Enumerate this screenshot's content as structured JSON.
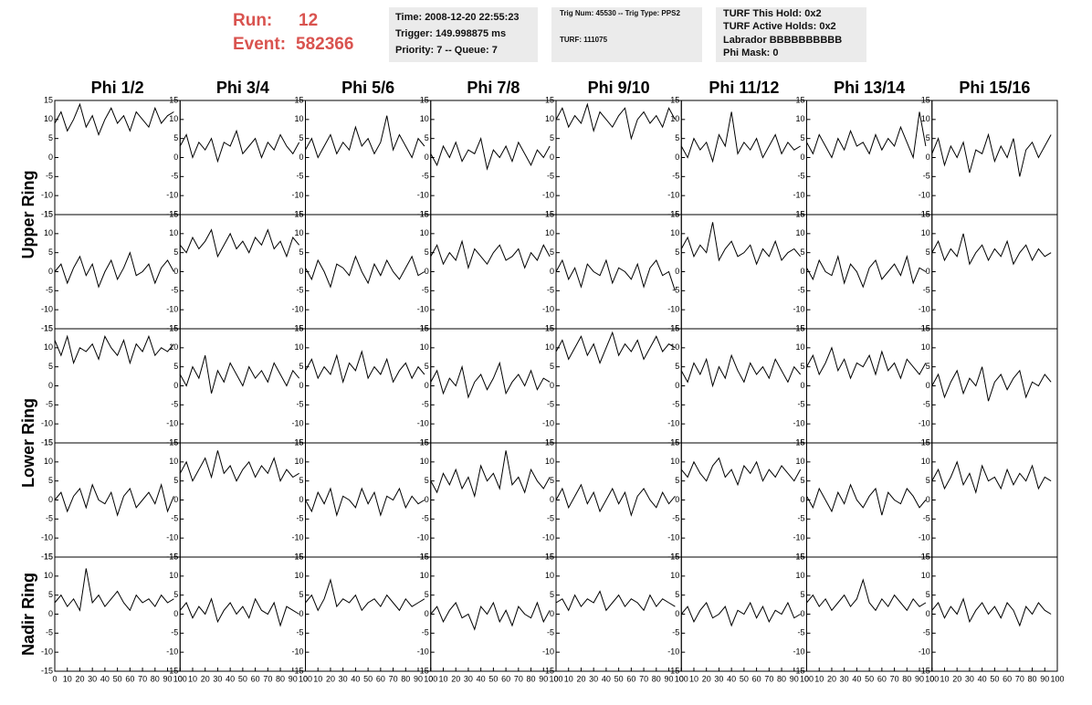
{
  "header": {
    "run_label": "Run:",
    "run": "12",
    "event_label": "Event:",
    "event": "582366",
    "time": "Time: 2008-12-20 22:55:23",
    "trigger": "Trigger: 149.998875 ms",
    "priority": "Priority: 7 -- Queue: 7",
    "trig_num": "Trig Num: 45530 -- Trig Type: PPS2",
    "turf": "TURF: 111075",
    "turf_hold": "TURF This Hold: 0x2",
    "turf_active": "TURF Active Holds: 0x2",
    "labrador": "Labrador BBBBBBBBBB",
    "phi_mask": "Phi Mask: 0"
  },
  "chart_data": {
    "type": "line",
    "columns": [
      "Phi 1/2",
      "Phi 3/4",
      "Phi 5/6",
      "Phi 7/8",
      "Phi 9/10",
      "Phi 11/12",
      "Phi 13/14",
      "Phi 15/16"
    ],
    "row_labels": [
      "Upper Ring",
      "Lower Ring",
      "Nadir Ring"
    ],
    "color": "#000000",
    "xlim": [
      0,
      100
    ],
    "xticks": [
      0,
      10,
      20,
      30,
      40,
      50,
      60,
      70,
      80,
      90,
      100
    ],
    "ylim": [
      -15,
      15
    ],
    "yticks": [
      -15,
      -10,
      -5,
      0,
      5,
      10,
      15
    ],
    "x": [
      0,
      5,
      10,
      15,
      20,
      25,
      30,
      35,
      40,
      45,
      50,
      55,
      60,
      65,
      70,
      75,
      80,
      85,
      90,
      95
    ],
    "panels": [
      [
        [
          9,
          12,
          7,
          10,
          14,
          8,
          11,
          6,
          10,
          13,
          9,
          11,
          7,
          12,
          10,
          8,
          13,
          9,
          11,
          12
        ],
        [
          3,
          6,
          0,
          4,
          2,
          5,
          -1,
          4,
          3,
          7,
          1,
          3,
          5,
          0,
          4,
          2,
          6,
          3,
          1,
          4
        ],
        [
          2,
          5,
          0,
          3,
          6,
          1,
          4,
          2,
          8,
          3,
          5,
          1,
          4,
          11,
          2,
          6,
          3,
          0,
          5,
          3
        ],
        [
          1,
          -2,
          3,
          0,
          4,
          -1,
          2,
          1,
          5,
          -3,
          2,
          0,
          3,
          -1,
          4,
          1,
          -2,
          2,
          0,
          3
        ],
        [
          10,
          13,
          8,
          11,
          9,
          14,
          7,
          12,
          10,
          8,
          11,
          13,
          5,
          10,
          12,
          9,
          11,
          8,
          13,
          10
        ],
        [
          3,
          0,
          5,
          2,
          4,
          -1,
          6,
          3,
          12,
          1,
          4,
          2,
          5,
          0,
          3,
          6,
          1,
          4,
          2,
          3
        ],
        [
          4,
          1,
          6,
          3,
          0,
          5,
          2,
          7,
          3,
          4,
          1,
          6,
          2,
          5,
          3,
          8,
          4,
          0,
          12,
          3
        ],
        [
          1,
          5,
          -2,
          3,
          0,
          4,
          -4,
          2,
          1,
          6,
          -1,
          3,
          0,
          5,
          -5,
          2,
          4,
          0,
          3,
          6
        ]
      ],
      [
        [
          0,
          2,
          -3,
          1,
          4,
          -1,
          2,
          -4,
          0,
          3,
          -2,
          1,
          5,
          -1,
          0,
          2,
          -3,
          1,
          3,
          0
        ],
        [
          7,
          5,
          9,
          6,
          8,
          11,
          4,
          7,
          10,
          6,
          8,
          5,
          9,
          7,
          11,
          6,
          8,
          4,
          9,
          7
        ],
        [
          1,
          -2,
          3,
          0,
          -4,
          2,
          1,
          -1,
          4,
          0,
          -3,
          2,
          -1,
          3,
          0,
          -2,
          1,
          4,
          -1,
          0
        ],
        [
          4,
          7,
          2,
          5,
          3,
          8,
          1,
          6,
          4,
          2,
          5,
          7,
          3,
          4,
          6,
          1,
          5,
          3,
          7,
          4
        ],
        [
          0,
          3,
          -2,
          1,
          -4,
          2,
          0,
          -1,
          3,
          -3,
          1,
          0,
          -2,
          2,
          -4,
          1,
          3,
          -1,
          0,
          -5
        ],
        [
          6,
          9,
          4,
          7,
          5,
          13,
          3,
          6,
          8,
          4,
          5,
          7,
          2,
          6,
          4,
          8,
          3,
          5,
          6,
          4
        ],
        [
          1,
          -2,
          3,
          0,
          -1,
          4,
          -3,
          2,
          0,
          -4,
          1,
          3,
          -2,
          0,
          2,
          -1,
          4,
          -3,
          1,
          0
        ],
        [
          5,
          8,
          3,
          6,
          4,
          10,
          2,
          5,
          7,
          3,
          6,
          4,
          8,
          2,
          5,
          7,
          3,
          6,
          4,
          5
        ]
      ],
      [
        [
          12,
          8,
          13,
          6,
          10,
          9,
          11,
          7,
          13,
          10,
          8,
          12,
          6,
          11,
          9,
          13,
          8,
          10,
          9,
          11
        ],
        [
          3,
          0,
          5,
          2,
          8,
          -2,
          4,
          1,
          6,
          3,
          0,
          5,
          2,
          4,
          1,
          6,
          3,
          0,
          4,
          2
        ],
        [
          4,
          7,
          2,
          5,
          3,
          8,
          1,
          6,
          4,
          9,
          2,
          5,
          3,
          7,
          1,
          4,
          6,
          2,
          5,
          3
        ],
        [
          1,
          4,
          -2,
          2,
          0,
          5,
          -3,
          1,
          3,
          -1,
          2,
          6,
          -2,
          1,
          3,
          0,
          4,
          -1,
          2,
          1
        ],
        [
          9,
          12,
          7,
          10,
          13,
          8,
          11,
          6,
          10,
          14,
          8,
          11,
          9,
          12,
          7,
          10,
          13,
          9,
          11,
          10
        ],
        [
          4,
          1,
          6,
          3,
          7,
          0,
          5,
          2,
          8,
          4,
          1,
          6,
          3,
          5,
          2,
          7,
          4,
          1,
          5,
          3
        ],
        [
          5,
          8,
          3,
          6,
          10,
          4,
          7,
          2,
          6,
          5,
          8,
          3,
          9,
          4,
          6,
          2,
          7,
          5,
          3,
          6
        ],
        [
          0,
          3,
          -3,
          1,
          4,
          -2,
          2,
          0,
          5,
          -4,
          1,
          3,
          -1,
          2,
          4,
          -3,
          1,
          0,
          3,
          1
        ]
      ],
      [
        [
          0,
          2,
          -3,
          1,
          3,
          -2,
          4,
          0,
          -1,
          2,
          -4,
          1,
          3,
          -2,
          0,
          2,
          -1,
          4,
          -3,
          1
        ],
        [
          7,
          10,
          5,
          8,
          11,
          6,
          13,
          7,
          9,
          5,
          8,
          10,
          6,
          9,
          7,
          11,
          5,
          8,
          6,
          7
        ],
        [
          0,
          -3,
          2,
          -1,
          3,
          -4,
          1,
          0,
          -2,
          3,
          -1,
          2,
          -4,
          1,
          0,
          3,
          -2,
          1,
          -1,
          0
        ],
        [
          5,
          2,
          7,
          4,
          8,
          3,
          6,
          1,
          9,
          5,
          7,
          3,
          13,
          4,
          6,
          2,
          8,
          5,
          3,
          6
        ],
        [
          0,
          3,
          -2,
          1,
          4,
          -1,
          2,
          -3,
          0,
          3,
          -1,
          2,
          -4,
          1,
          3,
          0,
          -2,
          2,
          -1,
          1
        ],
        [
          8,
          6,
          10,
          7,
          5,
          9,
          11,
          6,
          8,
          4,
          9,
          7,
          10,
          5,
          8,
          6,
          9,
          7,
          5,
          8
        ],
        [
          1,
          -2,
          3,
          0,
          -3,
          2,
          -1,
          4,
          0,
          -2,
          1,
          3,
          -4,
          2,
          0,
          -1,
          3,
          1,
          -2,
          0
        ],
        [
          5,
          8,
          3,
          6,
          10,
          4,
          7,
          2,
          9,
          5,
          6,
          3,
          8,
          4,
          7,
          5,
          9,
          3,
          6,
          5
        ]
      ],
      [
        [
          3,
          5,
          2,
          4,
          1,
          12,
          3,
          5,
          2,
          4,
          6,
          3,
          1,
          5,
          3,
          4,
          2,
          5,
          3,
          4
        ],
        [
          1,
          3,
          -1,
          2,
          0,
          4,
          -2,
          1,
          3,
          0,
          2,
          -1,
          4,
          1,
          0,
          3,
          -3,
          2,
          1,
          0
        ],
        [
          3,
          5,
          1,
          4,
          9,
          2,
          4,
          3,
          5,
          1,
          3,
          4,
          2,
          5,
          3,
          1,
          4,
          2,
          3,
          4
        ],
        [
          0,
          2,
          -2,
          1,
          3,
          -1,
          0,
          -4,
          2,
          0,
          3,
          -2,
          1,
          -3,
          2,
          0,
          -1,
          3,
          -2,
          1
        ],
        [
          3,
          4,
          1,
          5,
          2,
          4,
          3,
          6,
          1,
          3,
          5,
          2,
          4,
          3,
          1,
          5,
          2,
          4,
          3,
          2
        ],
        [
          0,
          2,
          -2,
          1,
          3,
          -1,
          0,
          2,
          -3,
          1,
          0,
          3,
          -1,
          2,
          -2,
          1,
          0,
          3,
          -1,
          0
        ],
        [
          3,
          5,
          2,
          4,
          1,
          3,
          5,
          2,
          4,
          9,
          3,
          1,
          4,
          2,
          5,
          3,
          1,
          4,
          2,
          3
        ],
        [
          1,
          3,
          -1,
          2,
          0,
          4,
          -2,
          1,
          3,
          0,
          2,
          -1,
          3,
          1,
          -3,
          2,
          0,
          3,
          1,
          0
        ]
      ]
    ]
  }
}
